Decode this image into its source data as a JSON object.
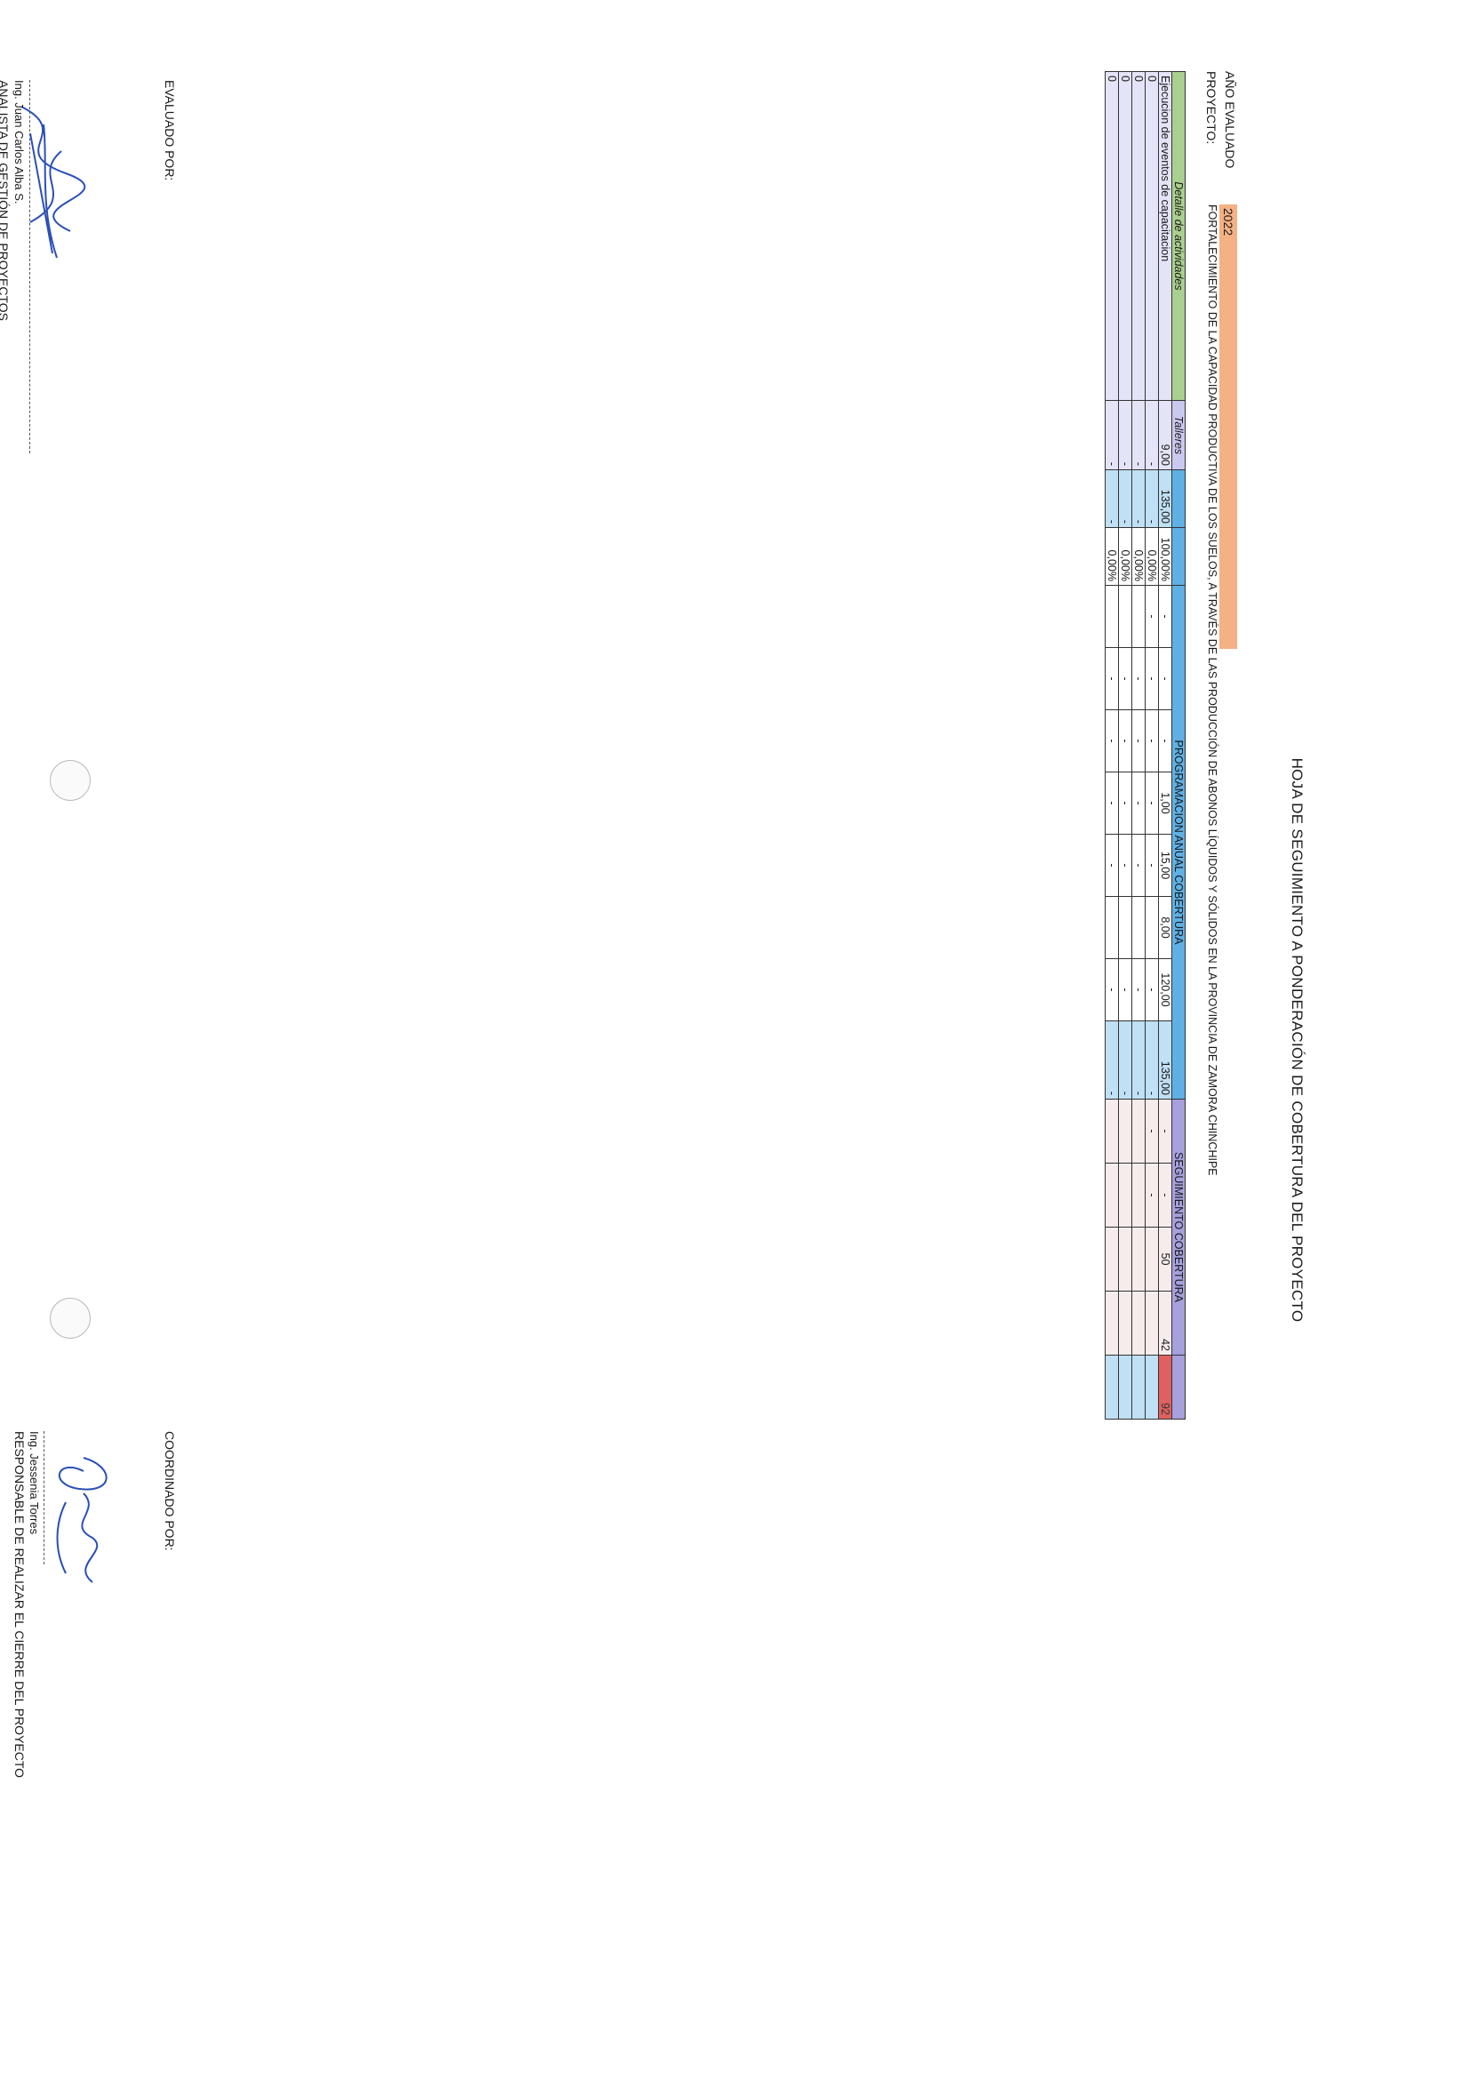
{
  "document": {
    "title": "HOJA DE SEGUIMIENTO A PONDERACIÓN DE COBERTURA DEL PROYECTO",
    "year_label": "AÑO EVALUADO",
    "year_value": "2022",
    "project_label": "PROYECTO:",
    "project_name": "FORTALECIMIENTO DE LA CAPACIDAD PRODUCTIVA DE LOS SUELOS, A TRAVÉS DE LAS PRODUCCIÓN DE ABONOS LÍQUIDOS Y SÓLIDOS EN LA PROVINCIA DE ZAMORA CHINCHIPE"
  },
  "table": {
    "headers": {
      "detalle": "Detalle de actividades",
      "talleres": "Talleres",
      "programacion": "PROGRAMACION ANUAL COBERTURA",
      "seguimiento": "SEGUIMIENTO COBERTURA"
    },
    "rows": [
      {
        "actividad": "Ejecucion de eventos de capacitacion",
        "talleres": "9,00",
        "total": "135,00",
        "pct": "100,00%",
        "prog": [
          "-",
          "-",
          "-",
          "1,00",
          "15,00",
          "8,00",
          "120,00"
        ],
        "prog_total": "135,00",
        "seg": [
          "-",
          "-",
          "50",
          "42"
        ],
        "seg_total": "92"
      },
      {
        "actividad": "0",
        "talleres": "-",
        "total": "-",
        "pct": "0,00%",
        "prog": [
          "-",
          "-",
          "-",
          "-",
          "-",
          "",
          "-"
        ],
        "prog_total": "-",
        "seg": [
          "-",
          "-",
          "",
          ""
        ],
        "seg_total": ""
      },
      {
        "actividad": "0",
        "talleres": "-",
        "total": "-",
        "pct": "0,00%",
        "prog": [
          "",
          "-",
          "-",
          "-",
          "-",
          "",
          "-"
        ],
        "prog_total": "-",
        "seg": [
          "",
          "",
          "",
          ""
        ],
        "seg_total": ""
      },
      {
        "actividad": "0",
        "talleres": "-",
        "total": "-",
        "pct": "0,00%",
        "prog": [
          "",
          "-",
          "-",
          "-",
          "-",
          "",
          "-"
        ],
        "prog_total": "-",
        "seg": [
          "",
          "",
          "",
          ""
        ],
        "seg_total": ""
      },
      {
        "actividad": "0",
        "talleres": "-",
        "total": "-",
        "pct": "0,00%",
        "prog": [
          "",
          "-",
          "-",
          "-",
          "-",
          "",
          "-"
        ],
        "prog_total": "-",
        "seg": [
          "",
          "",
          "",
          ""
        ],
        "seg_total": ""
      }
    ]
  },
  "signatures": {
    "left_label": "EVALUADO POR:",
    "left_name": "Ing. Juan Carlos Alba S.",
    "left_role": "ANALISTA DE GESTIÓN DE PROYECTOS",
    "right_label": "COORDINADO POR:",
    "right_name": "Ing. Jessenia Torres",
    "right_role": "RESPONSABLE DE REALIZAR EL CIERRE DEL PROYECTO"
  }
}
